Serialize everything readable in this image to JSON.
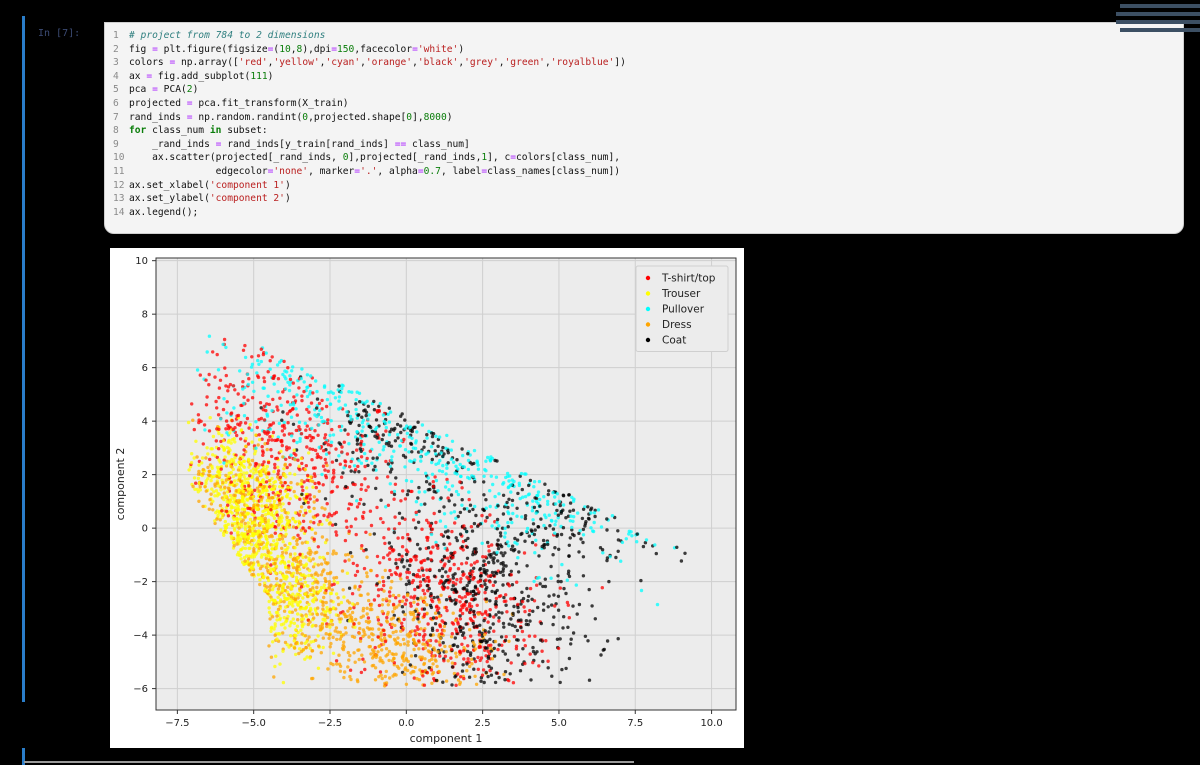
{
  "cell": {
    "prompt": "In [7]:",
    "code_lines": [
      [
        "1",
        "# project from 784 to 2 dimensions"
      ],
      [
        "2",
        "fig = plt.figure(figsize=(10,8),dpi=150,facecolor='white')"
      ],
      [
        "3",
        "colors = np.array(['red','yellow','cyan','orange','black','grey','green','royalblue'])"
      ],
      [
        "4",
        "ax = fig.add_subplot(111)"
      ],
      [
        "5",
        "pca = PCA(2)"
      ],
      [
        "6",
        "projected = pca.fit_transform(X_train)"
      ],
      [
        "7",
        "rand_inds = np.random.randint(0,projected.shape[0],8000)"
      ],
      [
        "8",
        "for class_num in subset:"
      ],
      [
        "9",
        "    _rand_inds = rand_inds[y_train[rand_inds] == class_num]"
      ],
      [
        "10",
        "    ax.scatter(projected[_rand_inds, 0],projected[_rand_inds,1], c=colors[class_num],"
      ],
      [
        "11",
        "               edgecolor='none', marker='.', alpha=0.7, label=class_names[class_num])"
      ],
      [
        "12",
        "ax.set_xlabel('component 1')"
      ],
      [
        "13",
        "ax.set_ylabel('component 2')"
      ],
      [
        "14",
        "ax.legend();"
      ]
    ]
  },
  "chart_data": {
    "type": "scatter",
    "xlabel": "component 1",
    "ylabel": "component 2",
    "xlim": [
      -8.2,
      10.8
    ],
    "ylim": [
      -6.8,
      10.1
    ],
    "xticks": [
      -7.5,
      -5.0,
      -2.5,
      0.0,
      2.5,
      5.0,
      7.5,
      10.0
    ],
    "xtick_labels": [
      "−7.5",
      "−5.0",
      "−2.5",
      "0.0",
      "2.5",
      "5.0",
      "7.5",
      "10.0"
    ],
    "yticks": [
      -6,
      -4,
      -2,
      0,
      2,
      4,
      6,
      8,
      10
    ],
    "ytick_labels": [
      "−6",
      "−4",
      "−2",
      "0",
      "2",
      "4",
      "6",
      "8",
      "10"
    ],
    "grid": true,
    "legend_position": "top-right",
    "series": [
      {
        "name": "T-shirt/top",
        "color": "#ff0000",
        "centers": [
          [
            -3.0,
            2.0
          ],
          [
            0.5,
            -2.0
          ],
          [
            2.0,
            -3.5
          ],
          [
            -5.0,
            4.0
          ]
        ],
        "spread": [
          1.4,
          1.6
        ]
      },
      {
        "name": "Trouser",
        "color": "#ffff00",
        "centers": [
          [
            -5.2,
            -1.0
          ],
          [
            -4.6,
            0.6
          ],
          [
            -5.8,
            1.8
          ],
          [
            -3.6,
            -2.8
          ]
        ],
        "spread": [
          0.7,
          1.1
        ]
      },
      {
        "name": "Pullover",
        "color": "#00ffff",
        "centers": [
          [
            0.0,
            3.8
          ],
          [
            4.0,
            2.0
          ],
          [
            7.0,
            1.2
          ],
          [
            -3.0,
            5.5
          ]
        ],
        "spread": [
          2.0,
          1.3
        ]
      },
      {
        "name": "Dress",
        "color": "#ffa500",
        "centers": [
          [
            -4.0,
            -1.6
          ],
          [
            -2.0,
            -3.8
          ],
          [
            0.5,
            -4.6
          ],
          [
            -5.5,
            1.0
          ]
        ],
        "spread": [
          1.2,
          1.0
        ]
      },
      {
        "name": "Coat",
        "color": "#000000",
        "centers": [
          [
            6.0,
            1.4
          ],
          [
            2.5,
            -1.0
          ],
          [
            0.0,
            3.5
          ],
          [
            3.0,
            -3.8
          ]
        ],
        "spread": [
          1.6,
          1.3
        ]
      }
    ]
  }
}
